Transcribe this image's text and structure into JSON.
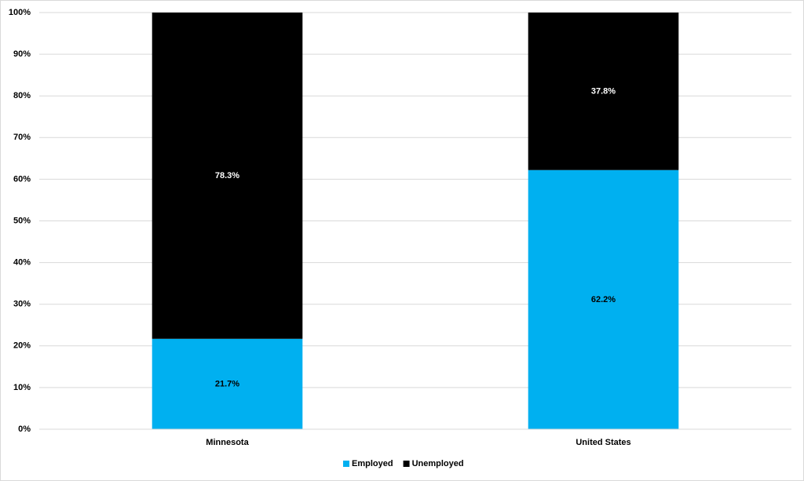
{
  "chart_data": {
    "type": "stacked_bar",
    "categories": [
      "Minnesota",
      "United States"
    ],
    "series": [
      {
        "name": "Employed",
        "color": "#00b0f0",
        "values": [
          21.7,
          62.2
        ],
        "value_labels": [
          "21.7%",
          "62.2%"
        ]
      },
      {
        "name": "Unemployed",
        "color": "#000000",
        "values": [
          78.3,
          37.8
        ],
        "value_labels": [
          "78.3%",
          "37.8%"
        ]
      }
    ],
    "ylim": [
      0,
      100
    ],
    "yticks": [
      {
        "value": 0,
        "label": "0%"
      },
      {
        "value": 10,
        "label": "10%"
      },
      {
        "value": 20,
        "label": "20%"
      },
      {
        "value": 30,
        "label": "30%"
      },
      {
        "value": 40,
        "label": "40%"
      },
      {
        "value": 50,
        "label": "50%"
      },
      {
        "value": 60,
        "label": "60%"
      },
      {
        "value": 70,
        "label": "70%"
      },
      {
        "value": 80,
        "label": "80%"
      },
      {
        "value": 90,
        "label": "90%"
      },
      {
        "value": 100,
        "label": "100%"
      }
    ],
    "grid": true,
    "legend": "bottom"
  }
}
